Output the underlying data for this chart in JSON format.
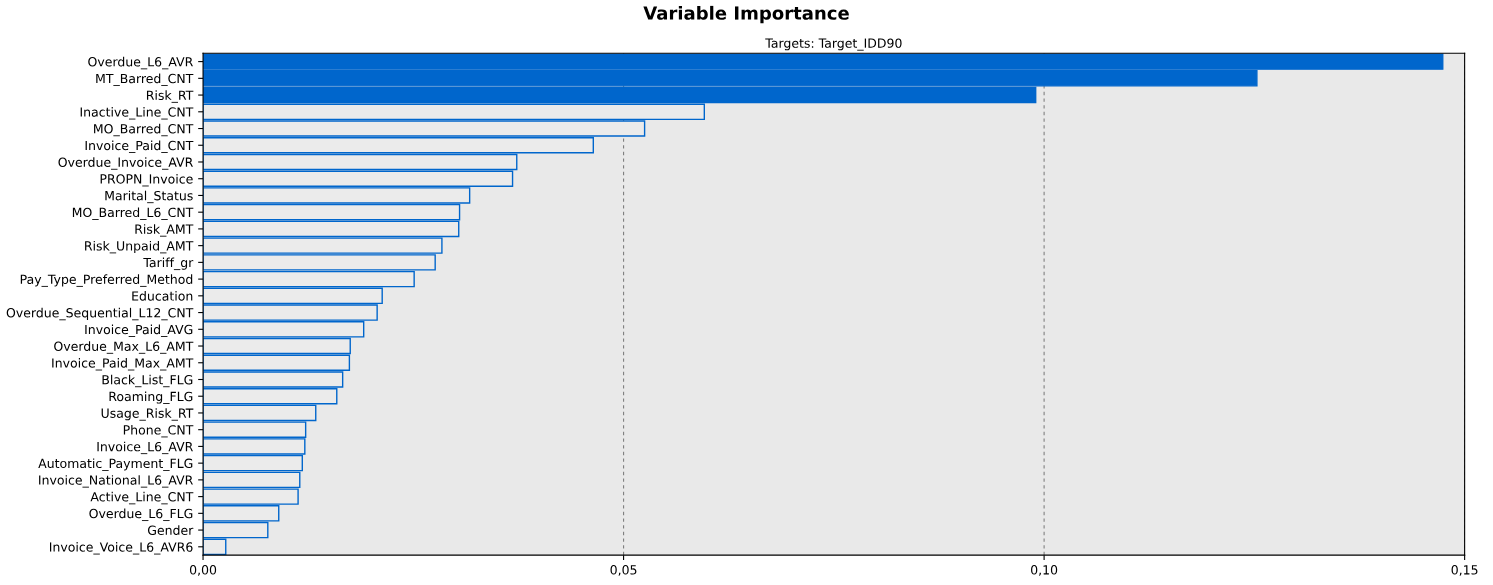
{
  "chart_data": {
    "type": "bar",
    "orientation": "horizontal",
    "title": "Variable Importance",
    "subtitle": "Targets: Target_IDD90",
    "categories": [
      "Overdue_L6_AVR",
      "MT_Barred_CNT",
      "Risk_RT",
      "Inactive_Line_CNT",
      "MO_Barred_CNT",
      "Invoice_Paid_CNT",
      "Overdue_Invoice_AVR",
      "PROPN_Invoice",
      "Marital_Status",
      "MO_Barred_L6_CNT",
      "Risk_AMT",
      "Risk_Unpaid_AMT",
      "Tariff_gr",
      "Pay_Type_Preferred_Method",
      "Education",
      "Overdue_Sequential_L12_CNT",
      "Invoice_Paid_AVG",
      "Overdue_Max_L6_AMT",
      "Invoice_Paid_Max_AMT",
      "Black_List_FLG",
      "Roaming_FLG",
      "Usage_Risk_RT",
      "Phone_CNT",
      "Invoice_L6_AVR",
      "Automatic_Payment_FLG",
      "Invoice_National_L6_AVR",
      "Active_Line_CNT",
      "Overdue_L6_FLG",
      "Gender",
      "Invoice_Voice_L6_AVR6"
    ],
    "series": [
      {
        "color": "#0066cc",
        "values": [
          0.1474,
          0.1253,
          0.099,
          0.0596,
          0.0525,
          0.0464,
          0.0373,
          0.0368,
          0.0317,
          0.0305,
          0.0304,
          0.0284,
          0.0276,
          0.0251,
          0.0213,
          0.0207,
          0.0191,
          0.0175,
          0.0174,
          0.0166,
          0.0159,
          0.0134,
          0.0122,
          0.0121,
          0.0118,
          0.0115,
          0.0113,
          0.009,
          0.0077,
          0.0027
        ],
        "colors": [
          "#0066cc",
          "#0066cc",
          "#0066cc",
          "#ebebeb",
          "#ebebeb",
          "#ebebeb",
          "#ebebeb",
          "#ebebeb",
          "#ebebeb",
          "#ebebeb",
          "#ebebeb",
          "#ebebeb",
          "#ebebeb",
          "#ebebeb",
          "#ebebeb",
          "#ebebeb",
          "#ebebeb",
          "#ebebeb",
          "#ebebeb",
          "#ebebeb",
          "#ebebeb",
          "#ebebeb",
          "#ebebeb",
          "#ebebeb",
          "#ebebeb",
          "#ebebeb",
          "#ebebeb",
          "#ebebeb",
          "#ebebeb",
          "#ebebeb"
        ]
      }
    ],
    "xlim": [
      0,
      0.15
    ],
    "xticks": [
      {
        "value": 0,
        "label": "0,00"
      },
      {
        "value": 0.05,
        "label": "0,05"
      },
      {
        "value": 0.1,
        "label": "0,10"
      },
      {
        "value": 0.15,
        "label": "0,15"
      }
    ],
    "grid": "x"
  }
}
